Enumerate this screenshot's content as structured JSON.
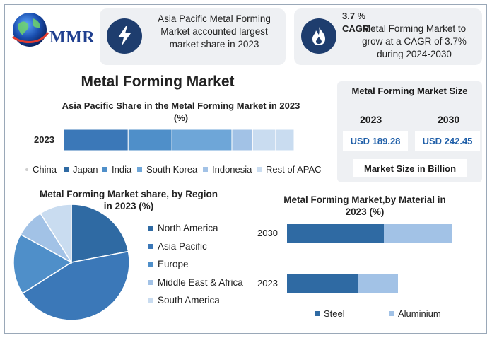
{
  "brand": {
    "logo_text": "MMR"
  },
  "cards": [
    {
      "icon": "lightning-icon",
      "text": [
        "Asia Pacific Metal Forming",
        "Market accounted largest",
        "market share in 2023"
      ]
    },
    {
      "icon": "flame-icon",
      "headline": "3.7 % CAGR",
      "text": [
        "Metal Forming Market to",
        "grow at a CAGR of 3.7%",
        "during 2024-2030"
      ]
    }
  ],
  "main_title": "Metal Forming Market",
  "market_size": {
    "title": "Metal Forming Market Size",
    "years": [
      "2023",
      "2030"
    ],
    "values": [
      "USD 189.28",
      "USD 242.45"
    ],
    "footer": "Market Size in Billion"
  },
  "colors": {
    "c1": "#2f6aa3",
    "c2": "#3b78b8",
    "c3": "#4f8fc9",
    "c4": "#6ea6d8",
    "c5": "#a2c2e6",
    "c6": "#c9dcf0",
    "icon_bg": "#1e3d6e",
    "card_bg": "#eef0f3"
  },
  "chart_data": [
    {
      "type": "bar",
      "orientation": "horizontal-stacked",
      "title_lines": [
        "Asia Pacific Share in the Metal Forming Market in 2023",
        "(%)"
      ],
      "categories": [
        "2023"
      ],
      "series": [
        {
          "name": "China",
          "values": [
            0
          ]
        },
        {
          "name": "Japan",
          "values": [
            28
          ]
        },
        {
          "name": "India",
          "values": [
            19
          ]
        },
        {
          "name": "South Korea",
          "values": [
            26
          ]
        },
        {
          "name": "Indonesia",
          "values": [
            9
          ]
        },
        {
          "name": "Rest of APAC",
          "values": [
            10
          ]
        }
      ],
      "extra_segment": {
        "value": 8
      },
      "legend_position": "bottom"
    },
    {
      "type": "pie",
      "title_lines": [
        "Metal Forming Market share, by Region",
        "in 2023 (%)"
      ],
      "slices": [
        {
          "name": "North America",
          "value": 22
        },
        {
          "name": "Asia Pacific",
          "value": 44
        },
        {
          "name": "Europe",
          "value": 17
        },
        {
          "name": "Middle East & Africa",
          "value": 8
        },
        {
          "name": "South America",
          "value": 9
        }
      ],
      "legend_position": "right"
    },
    {
      "type": "bar",
      "orientation": "horizontal-stacked",
      "title_lines": [
        "Metal Forming Market,by Material in",
        "2023 (%)"
      ],
      "categories": [
        "2030",
        "2023"
      ],
      "series": [
        {
          "name": "Steel",
          "values": [
            137,
            100
          ]
        },
        {
          "name": "Aluminium",
          "values": [
            97,
            57
          ]
        }
      ],
      "legend_position": "bottom"
    }
  ]
}
